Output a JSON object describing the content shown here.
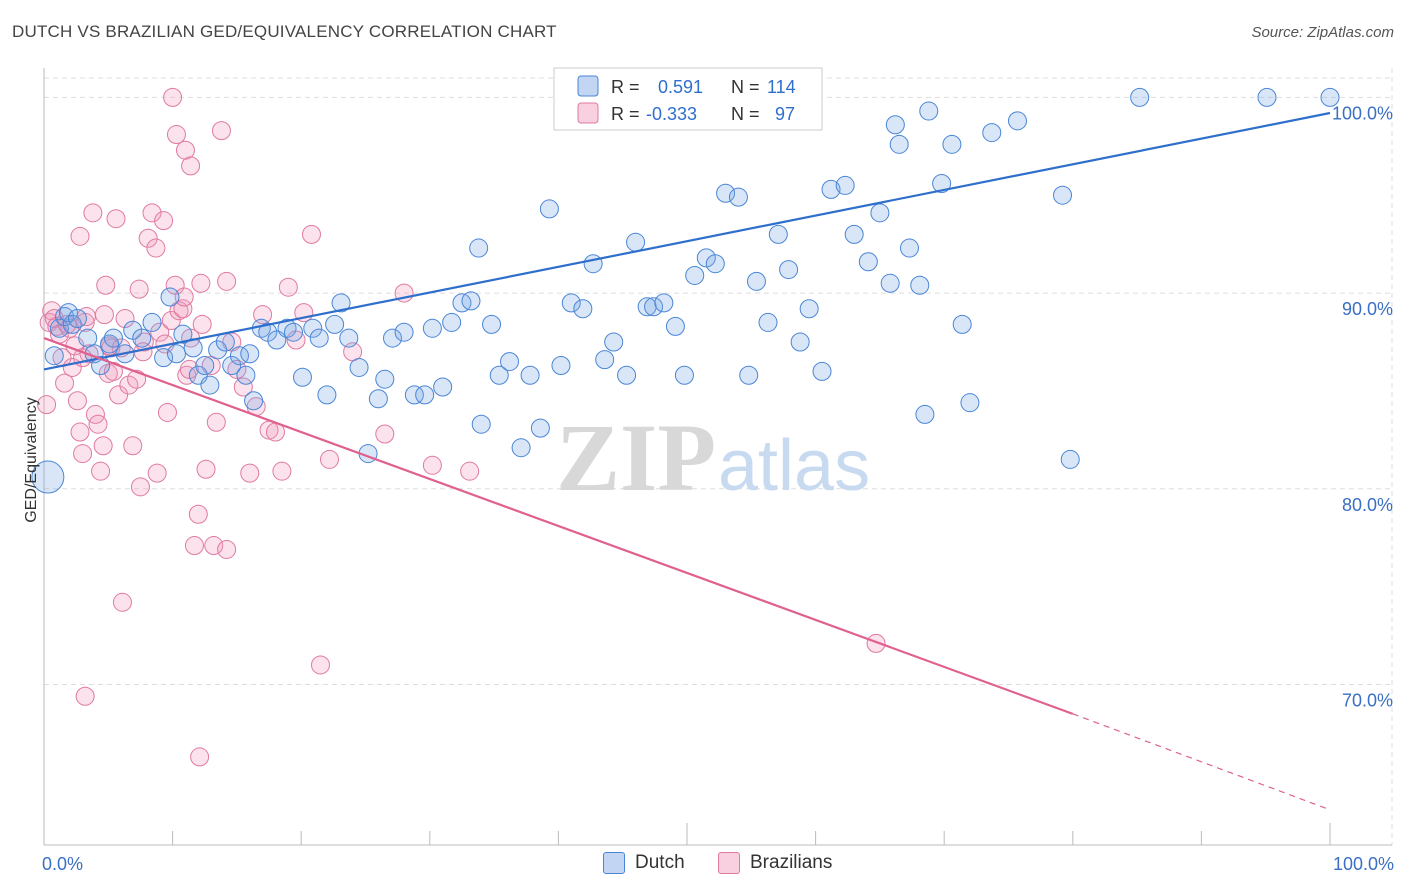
{
  "title": "DUTCH VS BRAZILIAN GED/EQUIVALENCY CORRELATION CHART",
  "source": "Source: ZipAtlas.com",
  "watermark": {
    "zip": "ZIP",
    "atlas": "atlas"
  },
  "colors": {
    "dutch": "#4a86d6",
    "dutch_fill": "rgba(120,165,230,0.28)",
    "dutch_line": "#2f6fcc",
    "brazil": "#e07aa1",
    "brazil_fill": "rgba(240,150,185,0.28)",
    "brazil_line": "#e0608f",
    "axis_label": "#3a6fc4",
    "grid": "#dddddd"
  },
  "stats_legend": {
    "dutch": {
      "r_label": "R =",
      "r_value": "0.591",
      "n_label": "N =",
      "n_value": "114"
    },
    "brazil": {
      "r_label": "R =",
      "r_value": "-0.333",
      "n_label": "N =",
      "n_value": "97"
    }
  },
  "chart_data": {
    "type": "scatter",
    "title": "DUTCH VS BRAZILIAN GED/EQUIVALENCY CORRELATION CHART",
    "xlabel": "",
    "ylabel": "GED/Equivalency",
    "xlim": [
      0,
      100
    ],
    "ylim": [
      61.8,
      101.5
    ],
    "x_tick_labels": [
      "0.0%",
      "100.0%"
    ],
    "y_ticks": [
      70,
      80,
      90,
      100
    ],
    "y_tick_labels": [
      "70.0%",
      "80.0%",
      "90.0%",
      "100.0%"
    ],
    "grid": true,
    "legend": [
      "Dutch",
      "Brazilians"
    ],
    "series": [
      {
        "name": "Dutch",
        "r": 0.591,
        "n": 114,
        "trend": {
          "x": [
            0,
            100
          ],
          "y": [
            86.1,
            99.2
          ]
        },
        "points": [
          [
            0.3,
            80.6
          ],
          [
            0.8,
            86.8
          ],
          [
            1.2,
            88.2
          ],
          [
            1.6,
            88.8
          ],
          [
            1.9,
            89.0
          ],
          [
            2.2,
            88.4
          ],
          [
            2.6,
            88.7
          ],
          [
            3.4,
            87.7
          ],
          [
            3.9,
            86.9
          ],
          [
            4.4,
            86.3
          ],
          [
            5.1,
            87.4
          ],
          [
            5.4,
            87.7
          ],
          [
            6.3,
            86.9
          ],
          [
            6.9,
            88.1
          ],
          [
            7.6,
            87.7
          ],
          [
            8.4,
            88.5
          ],
          [
            9.3,
            86.7
          ],
          [
            9.8,
            89.8
          ],
          [
            10.3,
            86.9
          ],
          [
            10.8,
            87.9
          ],
          [
            11.6,
            87.2
          ],
          [
            12.0,
            85.8
          ],
          [
            12.5,
            86.3
          ],
          [
            12.9,
            85.3
          ],
          [
            13.5,
            87.1
          ],
          [
            14.1,
            87.5
          ],
          [
            14.6,
            86.3
          ],
          [
            15.2,
            86.8
          ],
          [
            15.7,
            85.8
          ],
          [
            16.3,
            84.5
          ],
          [
            16.9,
            88.2
          ],
          [
            17.4,
            88.0
          ],
          [
            18.1,
            87.6
          ],
          [
            18.9,
            88.2
          ],
          [
            19.4,
            88.0
          ],
          [
            20.1,
            85.7
          ],
          [
            20.9,
            88.2
          ],
          [
            21.4,
            87.7
          ],
          [
            22.0,
            84.8
          ],
          [
            22.6,
            88.4
          ],
          [
            23.1,
            89.5
          ],
          [
            23.7,
            87.7
          ],
          [
            24.5,
            86.2
          ],
          [
            25.2,
            81.8
          ],
          [
            26.0,
            84.6
          ],
          [
            26.5,
            85.6
          ],
          [
            27.1,
            87.7
          ],
          [
            28.0,
            88.0
          ],
          [
            28.8,
            84.8
          ],
          [
            29.6,
            84.8
          ],
          [
            30.2,
            88.2
          ],
          [
            31.0,
            85.2
          ],
          [
            31.7,
            88.5
          ],
          [
            32.5,
            89.5
          ],
          [
            33.2,
            89.6
          ],
          [
            34.0,
            83.3
          ],
          [
            34.8,
            88.4
          ],
          [
            35.4,
            85.8
          ],
          [
            36.2,
            86.5
          ],
          [
            37.1,
            82.1
          ],
          [
            37.8,
            85.8
          ],
          [
            38.6,
            83.1
          ],
          [
            39.3,
            94.3
          ],
          [
            40.2,
            86.3
          ],
          [
            41.0,
            89.5
          ],
          [
            41.9,
            89.2
          ],
          [
            42.7,
            91.5
          ],
          [
            43.6,
            86.6
          ],
          [
            44.3,
            87.5
          ],
          [
            45.3,
            85.8
          ],
          [
            46.0,
            92.6
          ],
          [
            46.9,
            89.3
          ],
          [
            47.4,
            89.3
          ],
          [
            48.2,
            89.5
          ],
          [
            49.1,
            88.3
          ],
          [
            49.8,
            85.8
          ],
          [
            50.6,
            90.9
          ],
          [
            51.5,
            91.8
          ],
          [
            52.2,
            91.5
          ],
          [
            53.0,
            95.1
          ],
          [
            54.0,
            94.9
          ],
          [
            54.8,
            85.8
          ],
          [
            55.4,
            90.6
          ],
          [
            56.3,
            88.5
          ],
          [
            57.1,
            93.0
          ],
          [
            57.9,
            91.2
          ],
          [
            58.8,
            87.5
          ],
          [
            59.5,
            89.2
          ],
          [
            60.5,
            86.0
          ],
          [
            61.2,
            95.3
          ],
          [
            62.3,
            95.5
          ],
          [
            63.0,
            93.0
          ],
          [
            64.1,
            91.6
          ],
          [
            65.0,
            94.1
          ],
          [
            65.8,
            90.5
          ],
          [
            66.5,
            97.6
          ],
          [
            67.3,
            92.3
          ],
          [
            68.1,
            90.4
          ],
          [
            68.5,
            83.8
          ],
          [
            69.8,
            95.6
          ],
          [
            70.6,
            97.6
          ],
          [
            71.4,
            88.4
          ],
          [
            72.0,
            84.4
          ],
          [
            73.7,
            98.2
          ],
          [
            75.7,
            98.8
          ],
          [
            79.2,
            95.0
          ],
          [
            79.8,
            81.5
          ],
          [
            85.2,
            100.0
          ],
          [
            95.1,
            100.0
          ],
          [
            100.0,
            100.0
          ],
          [
            66.2,
            98.6
          ],
          [
            68.8,
            99.3
          ],
          [
            16.0,
            86.9
          ],
          [
            33.8,
            92.3
          ]
        ]
      },
      {
        "name": "Brazilians",
        "r": -0.333,
        "n": 97,
        "trend": {
          "x": [
            0,
            80
          ],
          "y": [
            87.7,
            68.5
          ]
        },
        "trend_dashed": {
          "x": [
            80,
            100
          ],
          "y": [
            68.5,
            63.6
          ]
        },
        "points": [
          [
            0.2,
            84.3
          ],
          [
            0.4,
            88.5
          ],
          [
            0.6,
            89.1
          ],
          [
            0.8,
            88.7
          ],
          [
            1.0,
            88.3
          ],
          [
            1.2,
            87.9
          ],
          [
            1.4,
            86.7
          ],
          [
            1.6,
            85.4
          ],
          [
            1.8,
            88.4
          ],
          [
            2.0,
            88.2
          ],
          [
            2.2,
            86.2
          ],
          [
            2.4,
            87.3
          ],
          [
            2.6,
            84.5
          ],
          [
            2.8,
            82.9
          ],
          [
            3.0,
            81.8
          ],
          [
            3.2,
            88.5
          ],
          [
            3.5,
            86.9
          ],
          [
            3.8,
            94.1
          ],
          [
            4.0,
            83.8
          ],
          [
            4.2,
            83.3
          ],
          [
            4.4,
            80.9
          ],
          [
            4.6,
            82.2
          ],
          [
            4.8,
            90.4
          ],
          [
            5.0,
            85.9
          ],
          [
            5.2,
            87.2
          ],
          [
            5.4,
            86.0
          ],
          [
            5.6,
            93.8
          ],
          [
            5.8,
            84.8
          ],
          [
            6.0,
            87.2
          ],
          [
            6.3,
            88.7
          ],
          [
            6.6,
            85.3
          ],
          [
            6.9,
            82.2
          ],
          [
            7.2,
            85.6
          ],
          [
            7.5,
            80.1
          ],
          [
            7.8,
            87.5
          ],
          [
            8.1,
            92.8
          ],
          [
            8.4,
            94.1
          ],
          [
            8.7,
            92.3
          ],
          [
            9.0,
            88.0
          ],
          [
            9.3,
            93.7
          ],
          [
            9.6,
            83.9
          ],
          [
            9.9,
            88.6
          ],
          [
            10.2,
            90.4
          ],
          [
            10.5,
            89.1
          ],
          [
            10.8,
            89.2
          ],
          [
            11.1,
            85.8
          ],
          [
            11.4,
            87.7
          ],
          [
            11.7,
            77.1
          ],
          [
            12.0,
            78.7
          ],
          [
            12.3,
            88.4
          ],
          [
            12.6,
            81.0
          ],
          [
            13.0,
            86.3
          ],
          [
            13.4,
            83.4
          ],
          [
            13.8,
            98.3
          ],
          [
            14.2,
            90.6
          ],
          [
            14.6,
            87.5
          ],
          [
            15.0,
            86.1
          ],
          [
            15.5,
            85.2
          ],
          [
            16.0,
            80.8
          ],
          [
            16.5,
            84.2
          ],
          [
            17.0,
            88.9
          ],
          [
            17.5,
            83.0
          ],
          [
            18.0,
            82.9
          ],
          [
            18.5,
            80.9
          ],
          [
            19.0,
            90.3
          ],
          [
            19.6,
            87.6
          ],
          [
            20.2,
            89.0
          ],
          [
            20.8,
            93.0
          ],
          [
            21.5,
            71.0
          ],
          [
            22.2,
            81.5
          ],
          [
            24.0,
            87.0
          ],
          [
            26.5,
            82.8
          ],
          [
            28.0,
            90.0
          ],
          [
            30.2,
            81.2
          ],
          [
            33.1,
            80.9
          ],
          [
            8.8,
            80.8
          ],
          [
            6.1,
            74.2
          ],
          [
            3.2,
            69.4
          ],
          [
            12.1,
            66.3
          ],
          [
            64.7,
            72.1
          ],
          [
            10.0,
            100.0
          ],
          [
            10.3,
            98.1
          ],
          [
            11.0,
            97.3
          ],
          [
            11.4,
            96.5
          ],
          [
            12.2,
            90.5
          ],
          [
            11.3,
            86.1
          ],
          [
            10.9,
            89.8
          ],
          [
            9.4,
            87.4
          ],
          [
            7.4,
            90.2
          ],
          [
            7.7,
            87.0
          ],
          [
            4.7,
            88.9
          ],
          [
            5.1,
            87.3
          ],
          [
            2.8,
            92.9
          ],
          [
            3.0,
            86.7
          ],
          [
            3.3,
            88.8
          ],
          [
            13.2,
            77.1
          ],
          [
            14.2,
            76.9
          ]
        ]
      }
    ]
  },
  "bottom_legend": [
    {
      "label": "Dutch"
    },
    {
      "label": "Brazilians"
    }
  ]
}
